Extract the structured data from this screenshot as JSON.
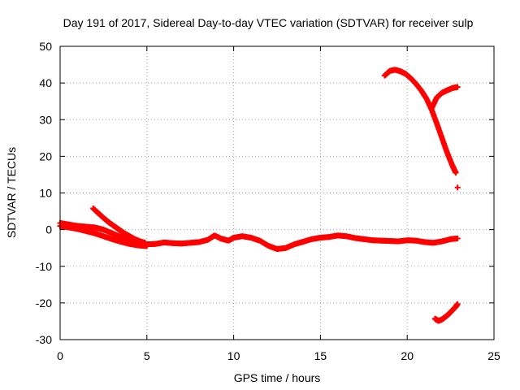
{
  "chart_data": {
    "type": "scatter",
    "title": "Day 191 of 2017, Sidereal Day-to-day VTEC variation (SDTVAR) for receiver sulp",
    "xlabel": "GPS time / hours",
    "ylabel": "SDTVAR / TECUs",
    "xlim": [
      0,
      25
    ],
    "ylim": [
      -30,
      50
    ],
    "xticks": [
      0,
      5,
      10,
      15,
      20,
      25
    ],
    "yticks": [
      -30,
      -20,
      -10,
      0,
      10,
      20,
      30,
      40,
      50
    ],
    "grid": true,
    "marker_color": "#ff0000",
    "series": [
      {
        "name": "band-main",
        "x": [
          0.0,
          0.5,
          1.0,
          1.5,
          2.0,
          2.5,
          3.0,
          3.5,
          4.0,
          4.5,
          5.0,
          5.5,
          6.0,
          6.5,
          7.0,
          7.5,
          8.0,
          8.5,
          8.9,
          9.3,
          9.7,
          10.0,
          10.5,
          11.0,
          11.5,
          12.0,
          12.5,
          13.0,
          13.5,
          14.0,
          14.5,
          15.0,
          15.5,
          16.0,
          16.5,
          17.0,
          17.5,
          18.0,
          18.5,
          19.0,
          19.5,
          20.0,
          20.5,
          21.0,
          21.5,
          22.0,
          22.5,
          22.9
        ],
        "y": [
          1.8,
          1.4,
          1.0,
          0.8,
          0.6,
          0.0,
          -1.0,
          -2.0,
          -2.8,
          -3.5,
          -4.0,
          -3.9,
          -3.5,
          -3.7,
          -3.8,
          -3.6,
          -3.4,
          -2.8,
          -1.6,
          -2.5,
          -3.0,
          -2.2,
          -1.8,
          -2.2,
          -3.0,
          -4.4,
          -5.3,
          -5.0,
          -4.0,
          -3.3,
          -2.6,
          -2.2,
          -2.0,
          -1.6,
          -1.8,
          -2.3,
          -2.6,
          -2.9,
          -3.0,
          -3.1,
          -3.2,
          -2.9,
          -3.0,
          -3.4,
          -3.6,
          -3.2,
          -2.6,
          -2.4
        ]
      },
      {
        "name": "band-lower-early",
        "x": [
          0.0,
          0.5,
          1.0,
          1.5,
          2.0,
          2.5,
          3.0,
          3.5,
          4.0,
          4.5,
          5.0
        ],
        "y": [
          1.0,
          0.6,
          0.2,
          -0.4,
          -1.0,
          -1.8,
          -2.6,
          -3.3,
          -3.9,
          -4.3,
          -4.5
        ]
      },
      {
        "name": "early-decay",
        "x": [
          1.9,
          2.2,
          2.5,
          2.8,
          3.1,
          3.4,
          3.7,
          4.0,
          4.3,
          4.6,
          4.9
        ],
        "y": [
          5.8,
          4.5,
          3.2,
          2.0,
          1.0,
          0.0,
          -1.0,
          -1.8,
          -2.6,
          -3.2,
          -3.6
        ]
      },
      {
        "name": "late-arc-high",
        "x": [
          18.7,
          19.0,
          19.3,
          19.6,
          19.9,
          20.2,
          20.5,
          20.8,
          21.1,
          21.4,
          21.7,
          22.0,
          22.3,
          22.6,
          22.8
        ],
        "y": [
          42.0,
          43.3,
          43.6,
          43.2,
          42.5,
          41.3,
          39.8,
          38.0,
          35.8,
          32.8,
          29.0,
          25.0,
          21.0,
          17.5,
          15.5
        ]
      },
      {
        "name": "late-arc-branch",
        "x": [
          21.4,
          21.7,
          22.0,
          22.3,
          22.6,
          22.9
        ],
        "y": [
          33.0,
          36.0,
          37.3,
          38.0,
          38.6,
          38.9
        ]
      },
      {
        "name": "isolated-point",
        "x": [
          22.9
        ],
        "y": [
          11.5
        ]
      },
      {
        "name": "late-arc-low",
        "x": [
          21.6,
          21.8,
          22.0,
          22.2,
          22.4,
          22.6,
          22.8,
          22.9
        ],
        "y": [
          -24.3,
          -24.9,
          -24.5,
          -23.8,
          -23.0,
          -22.0,
          -21.0,
          -20.3
        ]
      }
    ]
  }
}
